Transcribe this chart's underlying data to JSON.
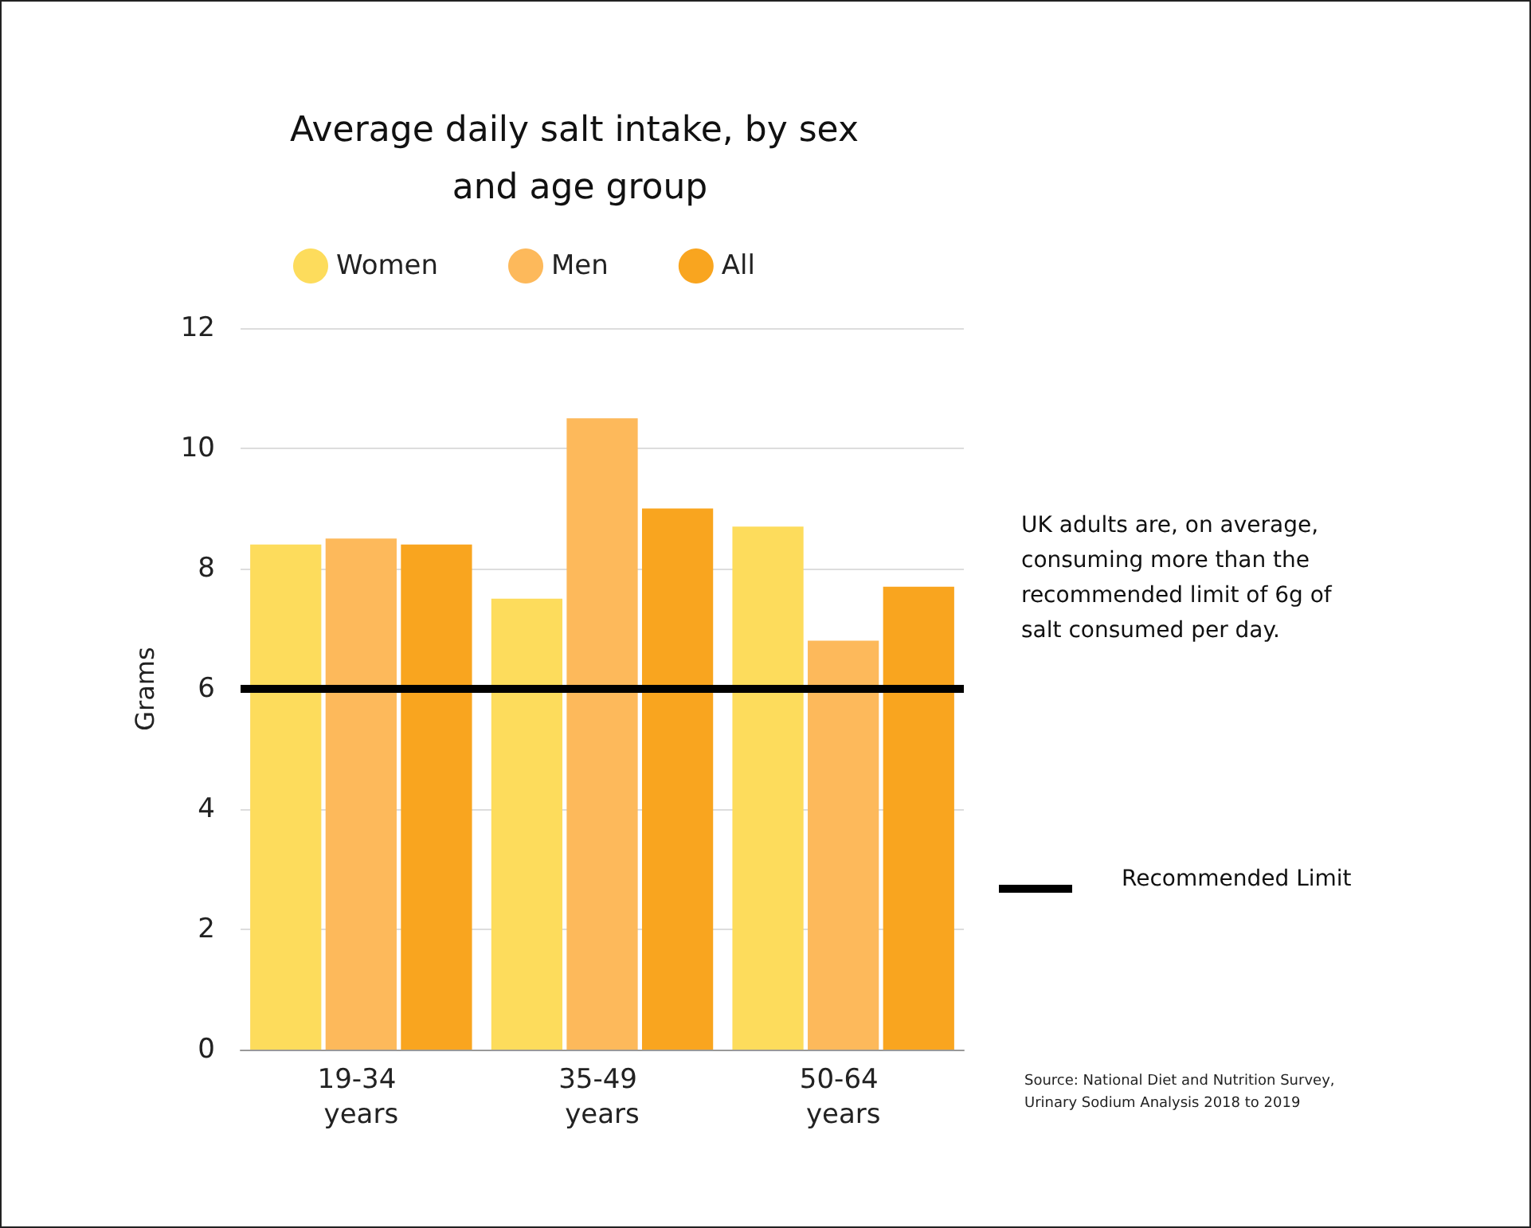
{
  "chart_data": {
    "type": "bar",
    "title": "Average daily salt intake, by sex and age group",
    "ylabel": "Grams",
    "categories": [
      "19-34 years",
      "35-49 years",
      "50-64 years"
    ],
    "series": [
      {
        "name": "Women",
        "color": "#fddc5c",
        "values": [
          8.4,
          7.5,
          8.7
        ]
      },
      {
        "name": "Men",
        "color": "#fdb95b",
        "values": [
          8.5,
          10.5,
          6.8
        ]
      },
      {
        "name": "All",
        "color": "#f9a51f",
        "values": [
          8.4,
          9.0,
          7.7
        ]
      }
    ],
    "ylim": [
      0,
      12
    ],
    "yticks": [
      0,
      2,
      4,
      6,
      8,
      10,
      12
    ],
    "grid": "y",
    "legend": "top",
    "ref_lines": [
      {
        "axis": "y",
        "value": 6,
        "label": "Recommended Limit",
        "color": "#000000",
        "line_style": "solid"
      }
    ],
    "annotations": [
      "UK adults are, on average, consuming more than the recommended limit of 6g of salt consumed per day.",
      "Source: National Diet and Nutrition Survey, Urinary Sodium Analysis 2018 to 2019"
    ]
  }
}
